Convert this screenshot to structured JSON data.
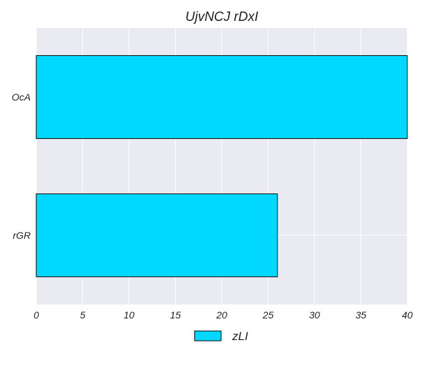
{
  "chart_data": {
    "type": "bar",
    "orientation": "horizontal",
    "title": "UjvNCJ rDxI",
    "categories": [
      "OcA",
      "rGR"
    ],
    "series": [
      {
        "name": "zLI",
        "values": [
          40,
          26
        ]
      }
    ],
    "xlim": [
      0,
      40
    ],
    "xticks": [
      "0",
      "5",
      "10",
      "15",
      "20",
      "25",
      "30",
      "35",
      "40"
    ],
    "xlabel": "",
    "ylabel": "",
    "grid": true,
    "legend_position": "bottom-center",
    "colors": {
      "bar": "#00d8ff",
      "bar_edge": "#000000",
      "plot_background": "#eaeaf2",
      "grid": "#ffffff"
    }
  }
}
